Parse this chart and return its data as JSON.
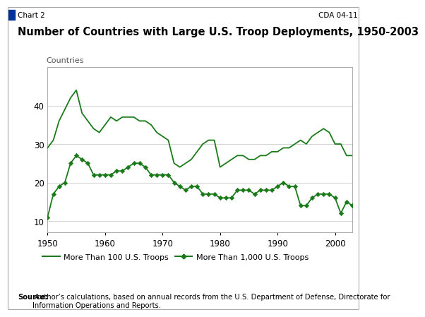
{
  "title": "Number of Countries with Large U.S. Troop Deployments, 1950-2003",
  "chart_label": "Chart 2",
  "cda_label": "CDA 04-11",
  "ylabel": "Countries",
  "source_text_bold": "Source:",
  "source_text_normal": " Author’s calculations, based on annual records from the U.S. Department of Defense, Directorate for\nInformation Operations and Reports.",
  "legend_100": "More Than 100 U.S. Troops",
  "legend_1000": "More Than 1,000 U.S. Troops",
  "color": "#1a7a1a",
  "xlim": [
    1950,
    2003
  ],
  "ylim": [
    7,
    50
  ],
  "yticks": [
    10,
    20,
    30,
    40
  ],
  "xticks": [
    1950,
    1960,
    1970,
    1980,
    1990,
    2000
  ],
  "years_100": [
    1950,
    1951,
    1952,
    1953,
    1954,
    1955,
    1956,
    1957,
    1958,
    1959,
    1960,
    1961,
    1962,
    1963,
    1964,
    1965,
    1966,
    1967,
    1968,
    1969,
    1970,
    1971,
    1972,
    1973,
    1974,
    1975,
    1976,
    1977,
    1978,
    1979,
    1980,
    1981,
    1982,
    1983,
    1984,
    1985,
    1986,
    1987,
    1988,
    1989,
    1990,
    1991,
    1992,
    1993,
    1994,
    1995,
    1996,
    1997,
    1998,
    1999,
    2000,
    2001,
    2002,
    2003
  ],
  "values_100": [
    29,
    31,
    36,
    39,
    42,
    44,
    38,
    36,
    34,
    33,
    35,
    37,
    36,
    37,
    37,
    37,
    36,
    36,
    35,
    33,
    32,
    31,
    25,
    24,
    25,
    26,
    28,
    30,
    31,
    31,
    24,
    25,
    26,
    27,
    27,
    26,
    26,
    27,
    27,
    28,
    28,
    29,
    29,
    30,
    31,
    30,
    32,
    33,
    34,
    33,
    30,
    30,
    27,
    27
  ],
  "years_1000": [
    1950,
    1951,
    1952,
    1953,
    1954,
    1955,
    1956,
    1957,
    1958,
    1959,
    1960,
    1961,
    1962,
    1963,
    1964,
    1965,
    1966,
    1967,
    1968,
    1969,
    1970,
    1971,
    1972,
    1973,
    1974,
    1975,
    1976,
    1977,
    1978,
    1979,
    1980,
    1981,
    1982,
    1983,
    1984,
    1985,
    1986,
    1987,
    1988,
    1989,
    1990,
    1991,
    1992,
    1993,
    1994,
    1995,
    1996,
    1997,
    1998,
    1999,
    2000,
    2001,
    2002,
    2003
  ],
  "values_1000": [
    11,
    17,
    19,
    20,
    25,
    27,
    26,
    25,
    22,
    22,
    22,
    22,
    23,
    23,
    24,
    25,
    25,
    24,
    22,
    22,
    22,
    22,
    20,
    19,
    18,
    19,
    19,
    17,
    17,
    17,
    16,
    16,
    16,
    18,
    18,
    18,
    17,
    18,
    18,
    18,
    19,
    20,
    19,
    19,
    14,
    14,
    16,
    17,
    17,
    17,
    16,
    12,
    15,
    14
  ]
}
